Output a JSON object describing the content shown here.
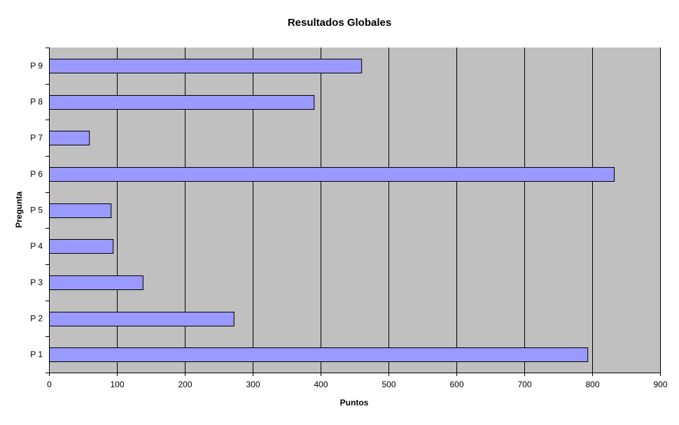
{
  "chart_data": {
    "type": "bar",
    "orientation": "horizontal",
    "title": "Resultados Globales",
    "xlabel": "Puntos",
    "ylabel": "Pregunta",
    "categories": [
      "P 1",
      "P 2",
      "P 3",
      "P 4",
      "P 5",
      "P 6",
      "P 7",
      "P 8",
      "P 9"
    ],
    "values": [
      793,
      272,
      138,
      94,
      91,
      832,
      59,
      390,
      460
    ],
    "xlim": [
      0,
      900
    ],
    "xticks": [
      0,
      100,
      200,
      300,
      400,
      500,
      600,
      700,
      800,
      900
    ],
    "grid": "vertical",
    "legend": "none",
    "colors": {
      "bar": "#9999FF",
      "plot_bg": "#C0C0C0",
      "grid": "#000000"
    }
  }
}
